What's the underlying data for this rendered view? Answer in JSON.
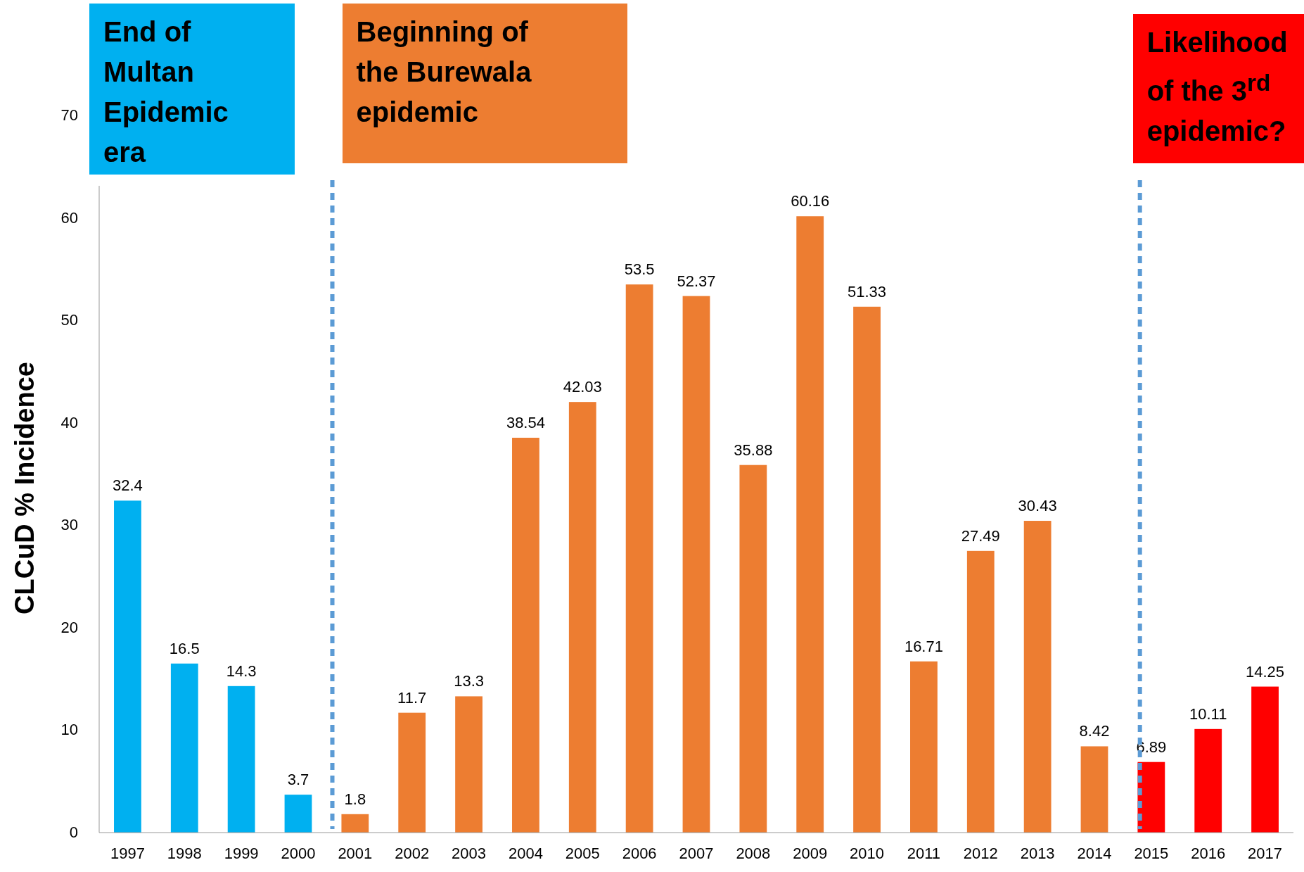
{
  "chart_data": {
    "type": "bar",
    "ylabel": "CLCuD % Incidence",
    "x": [
      1997,
      1998,
      1999,
      2000,
      2001,
      2002,
      2003,
      2004,
      2005,
      2006,
      2007,
      2008,
      2009,
      2010,
      2011,
      2012,
      2013,
      2014,
      2015,
      2016,
      2017
    ],
    "values": [
      32.4,
      16.5,
      14.3,
      3.7,
      1.8,
      11.7,
      13.3,
      38.54,
      42.03,
      53.5,
      52.37,
      35.88,
      60.16,
      51.33,
      16.71,
      27.49,
      30.43,
      8.42,
      6.89,
      10.11,
      14.25
    ],
    "colors": [
      "#00b0f0",
      "#00b0f0",
      "#00b0f0",
      "#00b0f0",
      "#ed7d31",
      "#ed7d31",
      "#ed7d31",
      "#ed7d31",
      "#ed7d31",
      "#ed7d31",
      "#ed7d31",
      "#ed7d31",
      "#ed7d31",
      "#ed7d31",
      "#ed7d31",
      "#ed7d31",
      "#ed7d31",
      "#ed7d31",
      "#ff0000",
      "#ff0000",
      "#ff0000"
    ],
    "data_labels": true,
    "xlim": [
      1996.5,
      2017.5
    ],
    "xticks": [
      1997,
      1998,
      1999,
      2000,
      2001,
      2002,
      2003,
      2004,
      2005,
      2006,
      2007,
      2008,
      2009,
      2010,
      2011,
      2012,
      2013,
      2014,
      2015,
      2016,
      2017
    ],
    "ylim": [
      0,
      70
    ],
    "yticks": [
      0,
      10,
      20,
      30,
      40,
      50,
      60,
      70
    ],
    "grid": false,
    "ref_lines": [
      {
        "axis": "x",
        "value": 2000.6,
        "color": "#5b9bd5",
        "line_style": "dashed"
      },
      {
        "axis": "x",
        "value": 2014.8,
        "color": "#5b9bd5",
        "line_style": "dashed"
      }
    ],
    "annotations": [
      "End of Multan Epidemic era",
      "Beginning of the Burewala epidemic",
      "Likelihood of the 3$^{rd}$ epidemic?"
    ]
  }
}
